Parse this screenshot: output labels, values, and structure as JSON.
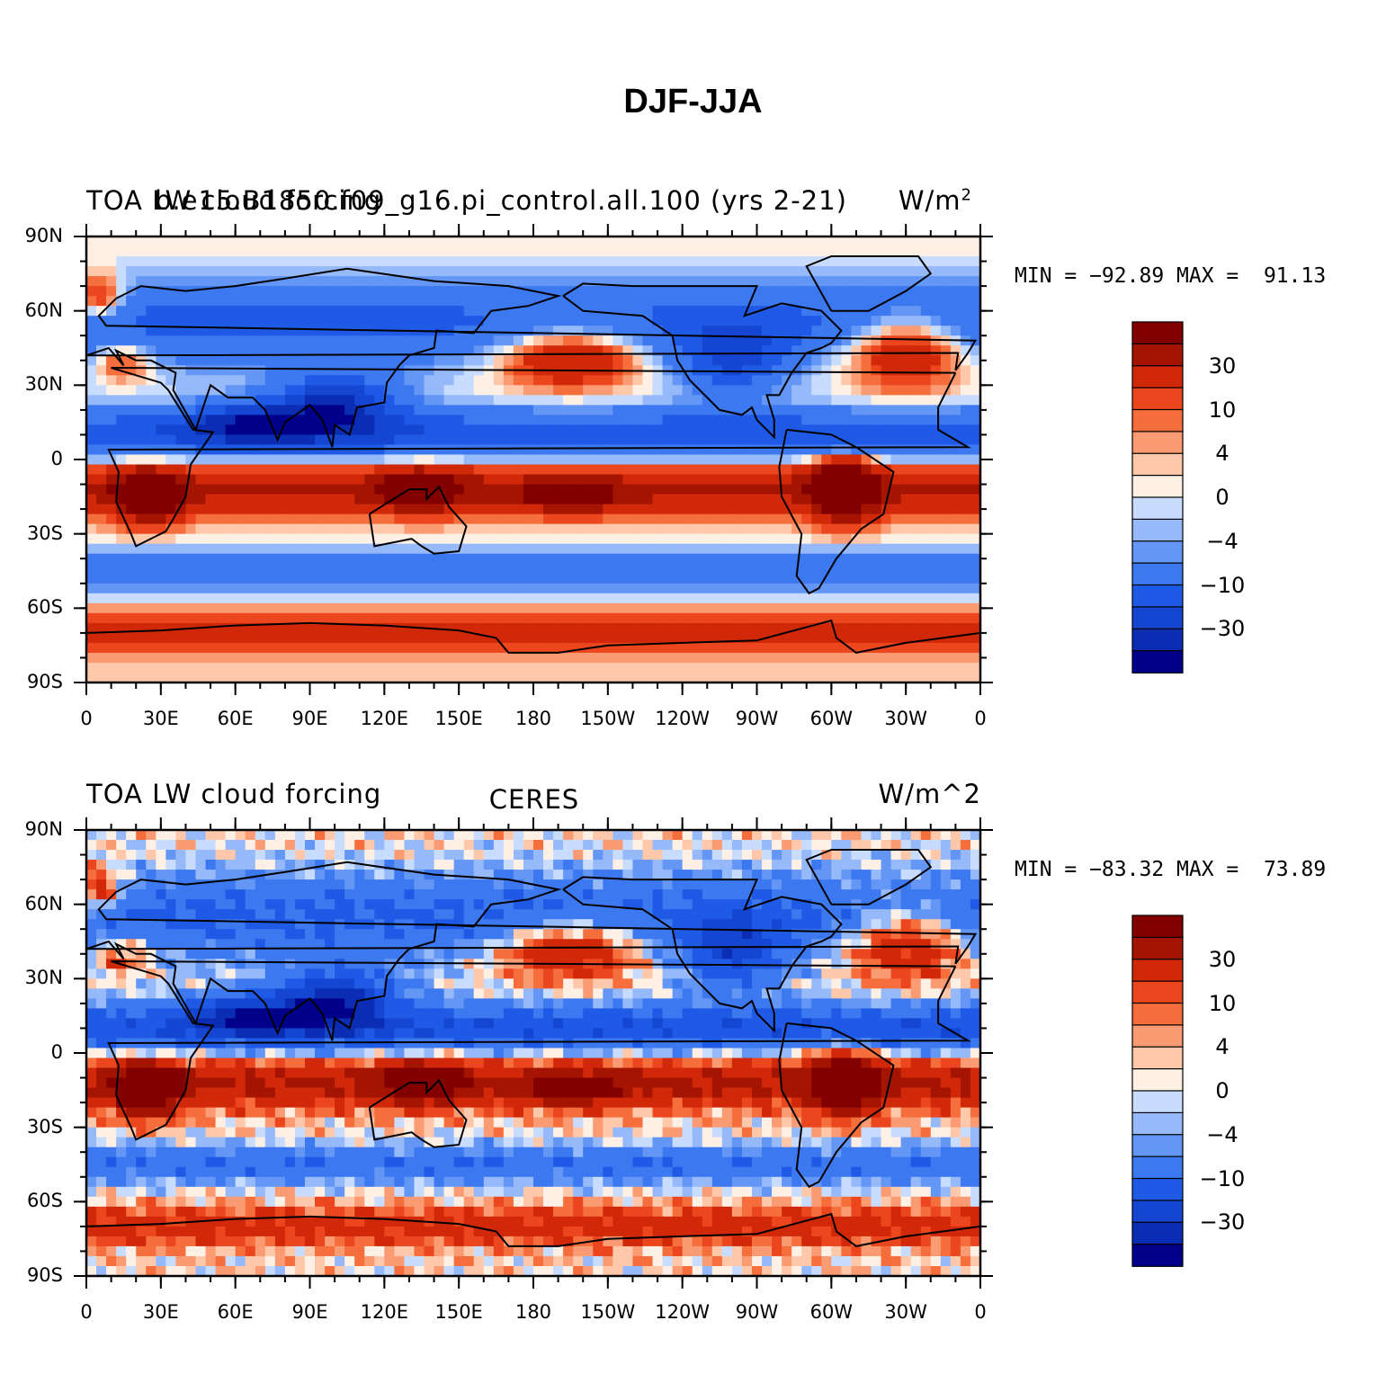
{
  "title": "DJF-JJA",
  "colors": {
    "levels_fill": [
      "#00008b",
      "#0a2db4",
      "#1446d2",
      "#1e5ae6",
      "#3c78f0",
      "#6496f5",
      "#96b9fa",
      "#c8dcff",
      "#fff0e6",
      "#ffc8aa",
      "#fa9b73",
      "#f56e3c",
      "#eb461e",
      "#d2280a",
      "#a51400",
      "#820000"
    ],
    "land_outline": "#000000"
  },
  "colorbar": {
    "labels": [
      "30",
      "10",
      "4",
      "0",
      "−4",
      "−10",
      "−30"
    ]
  },
  "axes": {
    "y_ticks": [
      "90N",
      "60N",
      "30N",
      "0",
      "30S",
      "60S",
      "90S"
    ],
    "x_ticks": [
      "0",
      "30E",
      "60E",
      "90E",
      "120E",
      "150E",
      "180",
      "150W",
      "120W",
      "90W",
      "60W",
      "30W",
      "0"
    ]
  },
  "panels": [
    {
      "left_title": "TOA LW cloud forcing",
      "center_title": "b.e15.B1850.f09_g16.pi_control.all.100 (yrs 2-21)",
      "right_title": "W/m",
      "right_title_sup": "2",
      "stats_text": "MIN = −92.89 MAX =  91.13",
      "min": -92.89,
      "max": 91.13
    },
    {
      "left_title": "TOA LW cloud forcing",
      "center_title": "CERES",
      "right_title": "W/m^2",
      "stats_text": "MIN = −83.32 MAX =  73.89",
      "min": -83.32,
      "max": 73.89
    }
  ],
  "chart_data": {
    "type": "heatmap",
    "title": "DJF-JJA",
    "contour_levels": [
      -50,
      -40,
      -30,
      -20,
      -10,
      -7,
      -4,
      -2,
      0,
      2,
      4,
      7,
      10,
      20,
      30,
      40
    ],
    "colorbar_tick_labels": [
      "30",
      "10",
      "4",
      "0",
      "−4",
      "−10",
      "−30"
    ],
    "xlim": [
      0,
      360
    ],
    "ylim": [
      -90,
      90
    ],
    "x_tick_labels": [
      "0",
      "30E",
      "60E",
      "90E",
      "120E",
      "150E",
      "180",
      "150W",
      "120W",
      "90W",
      "60W",
      "30W",
      "0"
    ],
    "y_tick_labels": [
      "90N",
      "60N",
      "30N",
      "0",
      "30S",
      "60S",
      "90S"
    ],
    "series": [
      {
        "name": "b.e15.B1850.f09_g16.pi_control.all.100 (yrs 2-21)",
        "min": -92.89,
        "max": 91.13
      },
      {
        "name": "CERES",
        "min": -83.32,
        "max": 73.89
      }
    ]
  }
}
